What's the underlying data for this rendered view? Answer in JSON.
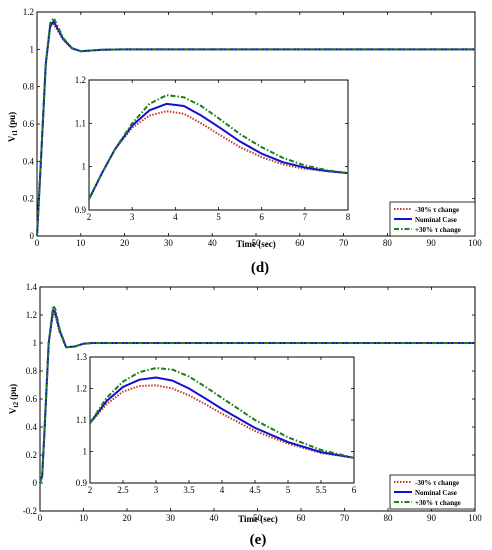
{
  "chart_data": [
    {
      "id": "d",
      "type": "line",
      "panel_label": "(d)",
      "ylabel": "V_t1 (pu)",
      "ylabel_main": "V",
      "ylabel_sub": "t1",
      "ylabel_unit": "(pu)",
      "xlim": [
        0,
        100
      ],
      "ylim": [
        0,
        1.2
      ],
      "xticks": [
        "0",
        "10",
        "20",
        "30",
        "40",
        "50",
        "60",
        "70",
        "80",
        "90",
        "100"
      ],
      "yticks": [
        "0",
        "0.2",
        "0.4",
        "0.6",
        "0.8",
        "1",
        "1.2"
      ],
      "series": [
        {
          "name": "-30% τ change",
          "color": "#c0392b",
          "style": "dotted",
          "x": [
            0,
            1,
            2,
            3,
            3.8,
            4.5,
            6,
            8,
            10,
            12,
            15,
            20,
            30,
            50,
            70,
            100
          ],
          "y": [
            0,
            0.45,
            0.92,
            1.12,
            1.135,
            1.11,
            1.05,
            1.005,
            0.99,
            0.993,
            0.998,
            1.0,
            1.0,
            1.0,
            1.0,
            1.0
          ]
        },
        {
          "name": "Nominal Case",
          "color": "#1010d0",
          "style": "solid",
          "x": [
            0,
            1,
            2,
            3,
            3.8,
            4.5,
            6,
            8,
            10,
            12,
            15,
            20,
            30,
            50,
            70,
            100
          ],
          "y": [
            0,
            0.45,
            0.92,
            1.125,
            1.15,
            1.12,
            1.055,
            1.005,
            0.99,
            0.993,
            0.998,
            1.0,
            1.0,
            1.0,
            1.0,
            1.0
          ]
        },
        {
          "name": "+30% τ change",
          "color": "#1e7d1e",
          "style": "dashdot",
          "x": [
            0,
            1,
            2,
            3,
            3.8,
            4.5,
            6,
            8,
            10,
            12,
            15,
            20,
            30,
            50,
            70,
            100
          ],
          "y": [
            0,
            0.45,
            0.92,
            1.14,
            1.168,
            1.135,
            1.06,
            1.007,
            0.99,
            0.993,
            0.998,
            1.0,
            1.0,
            1.0,
            1.0,
            1.0
          ]
        }
      ],
      "inset": {
        "xlabel": "Time (sec)",
        "xlim": [
          2,
          8
        ],
        "ylim": [
          0.9,
          1.2
        ],
        "xticks": [
          "2",
          "3",
          "4",
          "5",
          "6",
          "7",
          "8"
        ],
        "yticks": [
          "0.9",
          "1",
          "1.1",
          "1.2"
        ],
        "series": [
          {
            "name": "-30% τ change",
            "x": [
              2,
              2.3,
              2.6,
              3,
              3.4,
              3.8,
              4.2,
              4.6,
              5,
              5.5,
              6,
              6.5,
              7,
              7.5,
              8
            ],
            "y": [
              0.925,
              0.985,
              1.04,
              1.09,
              1.118,
              1.128,
              1.122,
              1.1,
              1.075,
              1.045,
              1.022,
              1.005,
              0.995,
              0.99,
              0.985
            ]
          },
          {
            "name": "Nominal Case",
            "x": [
              2,
              2.3,
              2.6,
              3,
              3.4,
              3.8,
              4.2,
              4.6,
              5,
              5.5,
              6,
              6.5,
              7,
              7.5,
              8
            ],
            "y": [
              0.925,
              0.985,
              1.04,
              1.095,
              1.13,
              1.145,
              1.14,
              1.118,
              1.092,
              1.058,
              1.03,
              1.01,
              0.998,
              0.99,
              0.985
            ]
          },
          {
            "name": "+30% τ change",
            "x": [
              2,
              2.3,
              2.6,
              3,
              3.4,
              3.8,
              4.2,
              4.6,
              5,
              5.5,
              6,
              6.5,
              7,
              7.5,
              8
            ],
            "y": [
              0.925,
              0.985,
              1.04,
              1.1,
              1.145,
              1.165,
              1.16,
              1.14,
              1.112,
              1.075,
              1.045,
              1.02,
              1.003,
              0.992,
              0.985
            ]
          }
        ]
      },
      "xlabel": "Time (sec)",
      "legend": [
        "-30% τ change",
        "Nominal Case",
        "+30% τ change"
      ],
      "legend_position": "bottom-right"
    },
    {
      "id": "e",
      "type": "line",
      "panel_label": "(e)",
      "ylabel": "V_t2 (pu)",
      "ylabel_main": "V",
      "ylabel_sub": "t2",
      "ylabel_unit": "(pu)",
      "xlim": [
        0,
        100
      ],
      "ylim": [
        -0.2,
        1.4
      ],
      "xticks": [
        "0",
        "10",
        "20",
        "30",
        "40",
        "50",
        "60",
        "70",
        "80",
        "90",
        "100"
      ],
      "yticks": [
        "-0.2",
        "0",
        "0.2",
        "0.4",
        "0.6",
        "0.8",
        "1",
        "1.2",
        "1.4"
      ],
      "series": [
        {
          "name": "-30% τ change",
          "color": "#c0392b",
          "style": "dotted",
          "x": [
            0,
            0.5,
            1,
            2,
            3,
            3.5,
            4.5,
            6,
            8,
            10,
            12,
            15,
            20,
            30,
            50,
            70,
            100
          ],
          "y": [
            0,
            0.05,
            0.35,
            1.0,
            1.21,
            1.2,
            1.08,
            0.97,
            0.975,
            0.995,
            1.0,
            1.0,
            1.0,
            1.0,
            1.0,
            1.0,
            1.0
          ]
        },
        {
          "name": "Nominal Case",
          "color": "#1010d0",
          "style": "solid",
          "x": [
            0,
            0.5,
            1,
            2,
            3,
            3.5,
            4.5,
            6,
            8,
            10,
            12,
            15,
            20,
            30,
            50,
            70,
            100
          ],
          "y": [
            0,
            0.05,
            0.35,
            1.0,
            1.235,
            1.22,
            1.09,
            0.97,
            0.975,
            0.995,
            1.0,
            1.0,
            1.0,
            1.0,
            1.0,
            1.0,
            1.0
          ]
        },
        {
          "name": "+30% τ change",
          "color": "#1e7d1e",
          "style": "dashdot",
          "x": [
            0,
            0.5,
            1,
            2,
            3,
            3.5,
            4.5,
            6,
            8,
            10,
            12,
            15,
            20,
            30,
            50,
            70,
            100
          ],
          "y": [
            0,
            0.05,
            0.35,
            1.0,
            1.265,
            1.245,
            1.1,
            0.97,
            0.975,
            0.995,
            1.0,
            1.0,
            1.0,
            1.0,
            1.0,
            1.0,
            1.0
          ]
        }
      ],
      "inset": {
        "xlabel": "Time (sec)",
        "xlim": [
          2,
          6
        ],
        "ylim": [
          0.9,
          1.3
        ],
        "xticks": [
          "2",
          "2.5",
          "3",
          "3.5",
          "4",
          "4.5",
          "5",
          "5.5",
          "6"
        ],
        "yticks": [
          "0.9",
          "1",
          "1.1",
          "1.2",
          "1.3"
        ],
        "series": [
          {
            "name": "-30% τ change",
            "x": [
              2,
              2.25,
              2.5,
              2.75,
              3,
              3.25,
              3.5,
              3.75,
              4,
              4.5,
              5,
              5.5,
              6
            ],
            "y": [
              1.09,
              1.15,
              1.19,
              1.208,
              1.21,
              1.2,
              1.178,
              1.15,
              1.12,
              1.065,
              1.025,
              0.995,
              0.98
            ]
          },
          {
            "name": "Nominal Case",
            "x": [
              2,
              2.25,
              2.5,
              2.75,
              3,
              3.25,
              3.5,
              3.75,
              4,
              4.5,
              5,
              5.5,
              6
            ],
            "y": [
              1.09,
              1.16,
              1.205,
              1.228,
              1.235,
              1.225,
              1.2,
              1.168,
              1.135,
              1.075,
              1.03,
              0.998,
              0.98
            ]
          },
          {
            "name": "+30% τ change",
            "x": [
              2,
              2.25,
              2.5,
              2.75,
              3,
              3.25,
              3.5,
              3.75,
              4,
              4.5,
              5,
              5.5,
              6
            ],
            "y": [
              1.09,
              1.17,
              1.222,
              1.252,
              1.265,
              1.26,
              1.238,
              1.205,
              1.17,
              1.1,
              1.045,
              1.005,
              0.98
            ]
          }
        ]
      },
      "xlabel": "Time (sec)",
      "legend": [
        "-30% τ change",
        "Nominal Case",
        "+30% τ change"
      ],
      "legend_position": "bottom-right"
    }
  ]
}
